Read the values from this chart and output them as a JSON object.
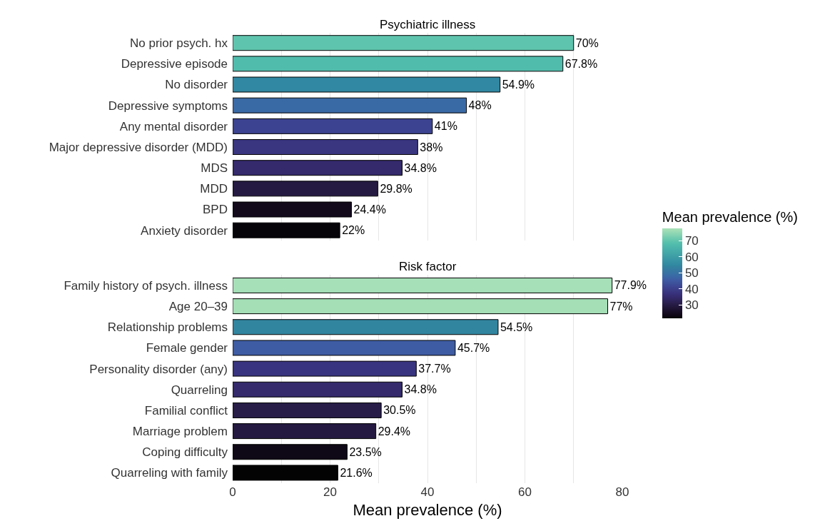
{
  "chart_data": [
    {
      "type": "bar",
      "orientation": "horizontal",
      "title": "Psychiatric illness",
      "tick_labels": "y",
      "grid": "x",
      "xlim": [
        0,
        80
      ],
      "xticks": [
        0,
        {
          "value": 10,
          "label": null
        },
        20,
        {
          "value": 30,
          "label": null
        },
        40,
        {
          "value": 50,
          "label": null
        },
        60,
        {
          "value": 70,
          "label": null
        },
        80
      ],
      "clabel": "Mean prevalence (%)",
      "clim": [
        21.6,
        77.9
      ],
      "cticks": [
        30,
        40,
        50,
        60,
        70
      ],
      "categories": [
        "No prior psych. hx",
        "Depressive episode",
        "No disorder",
        "Depressive symptoms",
        "Any mental disorder",
        "Major depressive disorder (MDD)",
        "MDS",
        "MDD",
        "BPD",
        "Anxiety disorder"
      ],
      "values": [
        70,
        67.8,
        54.9,
        48,
        41,
        38,
        34.8,
        29.8,
        24.4,
        22
      ],
      "value_labels": [
        "70%",
        "67.8%",
        "54.9%",
        "48%",
        "41%",
        "38%",
        "34.8%",
        "29.8%",
        "24.4%",
        "22%"
      ],
      "colors": [
        "#5fc4ad",
        "#50bcac",
        "#3188a2",
        "#3a6aa6",
        "#3c4390",
        "#3a3680",
        "#342a6c",
        "#251a42",
        "#130a1c",
        "#070409"
      ]
    },
    {
      "type": "bar",
      "orientation": "horizontal",
      "title": "Risk factor",
      "xlabel": "Mean prevalence (%)",
      "grid": "x",
      "xlim": [
        0,
        80
      ],
      "xticks": [
        0,
        {
          "value": 10,
          "label": null
        },
        20,
        {
          "value": 30,
          "label": null
        },
        40,
        {
          "value": 50,
          "label": null
        },
        60,
        {
          "value": 70,
          "label": null
        },
        80
      ],
      "categories": [
        "Family history of psych. illness",
        "Age 20–39",
        "Relationship problems",
        "Female gender",
        "Personality disorder (any)",
        "Quarreling",
        "Familial conflict",
        "Marriage problem",
        "Coping difficulty",
        "Quarreling with family"
      ],
      "values": [
        77.9,
        77,
        54.5,
        45.7,
        37.7,
        34.8,
        30.5,
        29.4,
        23.5,
        21.6
      ],
      "value_labels": [
        "77.9%",
        "77%",
        "54.5%",
        "45.7%",
        "37.7%",
        "34.8%",
        "30.5%",
        "29.4%",
        "23.5%",
        "21.6%"
      ],
      "colors": [
        "#a6e0b8",
        "#a4dfb6",
        "#32859f",
        "#3e5ca3",
        "#393480",
        "#342a6c",
        "#281d48",
        "#241940",
        "#0f0816",
        "#040304"
      ]
    }
  ]
}
